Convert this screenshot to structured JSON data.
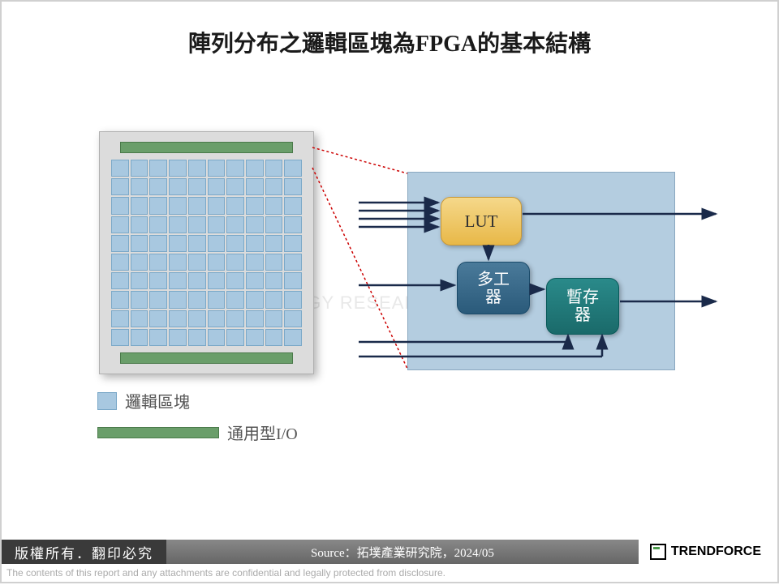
{
  "title": "陣列分布之邏輯區塊為FPGA的基本結構",
  "chip": {
    "grid_cols": 10,
    "grid_rows": 10,
    "cell_color": "#a8c8e0",
    "cell_border": "#7aa8c8",
    "io_color": "#6a9e6a",
    "chip_bg": "#dcdcdc"
  },
  "legend": {
    "logic_block": "邏輯區塊",
    "io": "通用型I/O"
  },
  "detail": {
    "bg": "#b4cde0",
    "lut": {
      "label": "LUT",
      "color": "#e8b848"
    },
    "mux": {
      "label": "多工器",
      "line1": "多工",
      "line2": "器",
      "color": "#2a5a7a"
    },
    "reg": {
      "label": "暫存器",
      "line1": "暫存",
      "line2": "器",
      "color": "#1a6a6a"
    }
  },
  "arrows": {
    "stroke": "#1a2a4a",
    "width": 2.5
  },
  "zoom_line": {
    "stroke": "#cc0000",
    "dash": "3,3"
  },
  "footer": {
    "copyright": "版權所有．翻印必究",
    "source": "Source：拓墣產業研究院，2024/05",
    "brand": "TRENDFORCE"
  },
  "disclaimer": "The contents of this report and any attachments are confidential and legally protected from disclosure.",
  "watermark": "TOPOLOGY RESEARCH INSTITUTE"
}
